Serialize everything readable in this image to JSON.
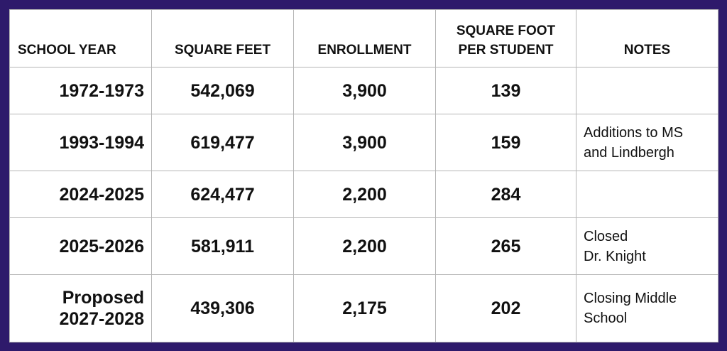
{
  "headers": {
    "school_year": "SCHOOL YEAR",
    "square_feet": "SQUARE FEET",
    "enrollment": "ENROLLMENT",
    "sqft_per_student_line1": "SQUARE FOOT",
    "sqft_per_student_line2": "PER STUDENT",
    "notes": "NOTES"
  },
  "rows": [
    {
      "year_line1": "1972-1973",
      "year_line2": "",
      "square_feet": "542,069",
      "enrollment": "3,900",
      "sqft_per_student": "139",
      "note_line1": "",
      "note_line2": ""
    },
    {
      "year_line1": "1993-1994",
      "year_line2": "",
      "square_feet": "619,477",
      "enrollment": "3,900",
      "sqft_per_student": "159",
      "note_line1": "Additions to MS",
      "note_line2": "and Lindbergh"
    },
    {
      "year_line1": "2024-2025",
      "year_line2": "",
      "square_feet": "624,477",
      "enrollment": "2,200",
      "sqft_per_student": "284",
      "note_line1": "",
      "note_line2": ""
    },
    {
      "year_line1": "2025-2026",
      "year_line2": "",
      "square_feet": "581,911",
      "enrollment": "2,200",
      "sqft_per_student": "265",
      "note_line1": "Closed",
      "note_line2": "Dr. Knight"
    },
    {
      "year_line1": "Proposed",
      "year_line2": "2027-2028",
      "square_feet": "439,306",
      "enrollment": "2,175",
      "sqft_per_student": "202",
      "note_line1": "Closing Middle",
      "note_line2": "School"
    }
  ],
  "colors": {
    "border_frame": "#2e1a6b",
    "background": "#ffffff",
    "grid": "#b5b5b5",
    "text": "#111111"
  }
}
